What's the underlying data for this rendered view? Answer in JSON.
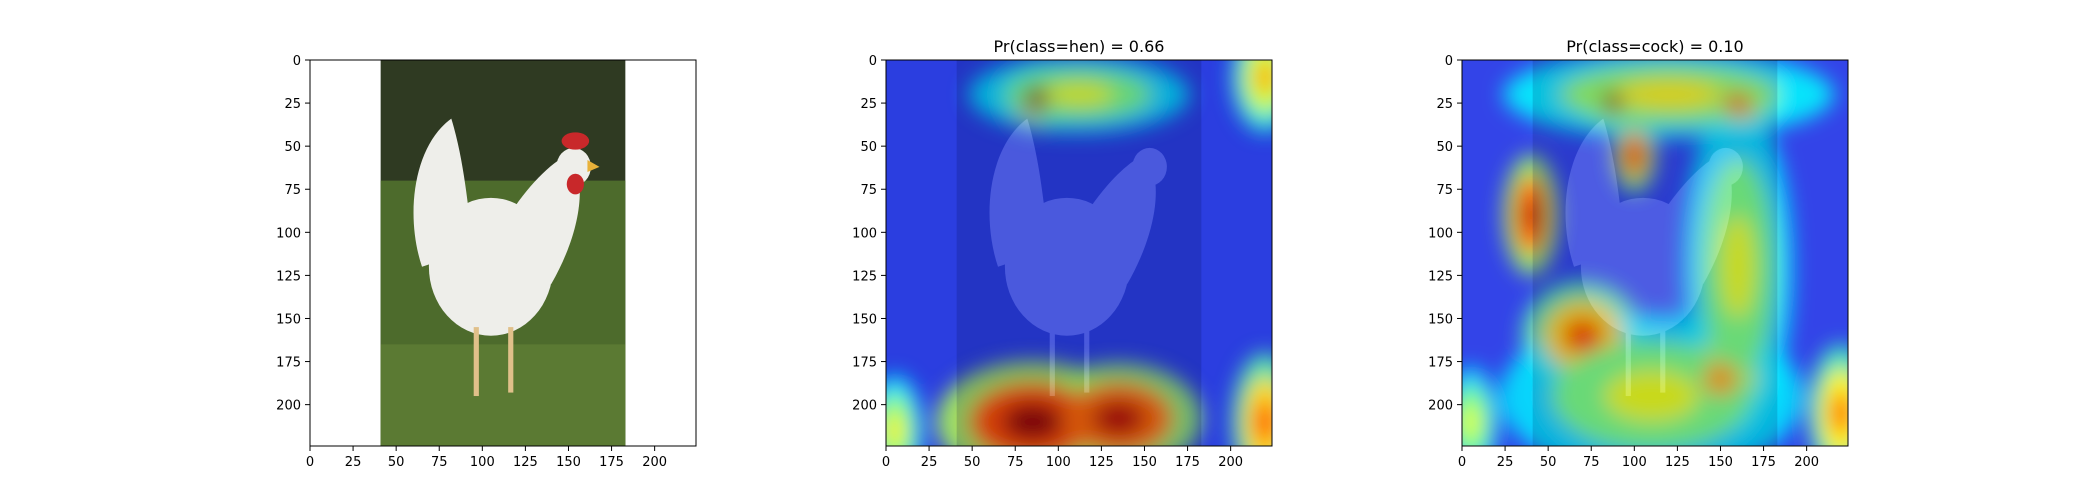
{
  "chart_data": [
    {
      "type": "heatmap",
      "panel": "original",
      "title": "",
      "xlim": [
        0,
        224
      ],
      "ylim": [
        224,
        0
      ],
      "xticks": [
        0,
        25,
        50,
        75,
        100,
        125,
        150,
        175,
        200
      ],
      "yticks": [
        0,
        25,
        50,
        75,
        100,
        125,
        150,
        175,
        200
      ],
      "image_extent_x": [
        41,
        183
      ],
      "image_colors": {
        "background": "#2f3a22",
        "grass": "#4d6b2c",
        "hen": "#eeeeea",
        "comb": "#c8282a",
        "beak": "#e8b13a"
      }
    },
    {
      "type": "heatmap",
      "panel": "hen",
      "title": "Pr(class=hen) =  0.66",
      "xlim": [
        0,
        224
      ],
      "ylim": [
        224,
        0
      ],
      "xticks": [
        0,
        25,
        50,
        75,
        100,
        125,
        150,
        175,
        200
      ],
      "yticks": [
        0,
        25,
        50,
        75,
        100,
        125,
        150,
        175,
        200
      ],
      "hotspots": [
        {
          "x": 85,
          "y": 210,
          "rx": 35,
          "ry": 22,
          "intensity": 1.0
        },
        {
          "x": 135,
          "y": 208,
          "rx": 30,
          "ry": 20,
          "intensity": 0.95
        },
        {
          "x": 88,
          "y": 22,
          "rx": 14,
          "ry": 12,
          "intensity": 1.0
        },
        {
          "x": 112,
          "y": 20,
          "rx": 40,
          "ry": 14,
          "intensity": 0.45
        },
        {
          "x": 220,
          "y": 210,
          "rx": 12,
          "ry": 25,
          "intensity": 0.75
        },
        {
          "x": 5,
          "y": 215,
          "rx": 10,
          "ry": 20,
          "intensity": 0.5
        },
        {
          "x": 220,
          "y": 10,
          "rx": 12,
          "ry": 20,
          "intensity": 0.6
        }
      ]
    },
    {
      "type": "heatmap",
      "panel": "cock",
      "title": "Pr(class=cock) =  0.10",
      "xlim": [
        0,
        224
      ],
      "ylim": [
        224,
        0
      ],
      "xticks": [
        0,
        25,
        50,
        75,
        100,
        125,
        150,
        175,
        200
      ],
      "yticks": [
        0,
        25,
        50,
        75,
        100,
        125,
        150,
        175,
        200
      ],
      "hotspots": [
        {
          "x": 88,
          "y": 24,
          "rx": 12,
          "ry": 11,
          "intensity": 1.0
        },
        {
          "x": 40,
          "y": 90,
          "rx": 10,
          "ry": 22,
          "intensity": 0.95
        },
        {
          "x": 100,
          "y": 55,
          "rx": 8,
          "ry": 14,
          "intensity": 0.85
        },
        {
          "x": 160,
          "y": 25,
          "rx": 15,
          "ry": 10,
          "intensity": 0.8
        },
        {
          "x": 70,
          "y": 160,
          "rx": 22,
          "ry": 20,
          "intensity": 0.75
        },
        {
          "x": 150,
          "y": 185,
          "rx": 20,
          "ry": 20,
          "intensity": 0.6
        },
        {
          "x": 120,
          "y": 20,
          "rx": 60,
          "ry": 16,
          "intensity": 0.5
        },
        {
          "x": 160,
          "y": 120,
          "rx": 20,
          "ry": 60,
          "intensity": 0.45
        },
        {
          "x": 110,
          "y": 195,
          "rx": 55,
          "ry": 30,
          "intensity": 0.45
        },
        {
          "x": 220,
          "y": 205,
          "rx": 12,
          "ry": 25,
          "intensity": 0.7
        },
        {
          "x": 5,
          "y": 210,
          "rx": 10,
          "ry": 20,
          "intensity": 0.45
        }
      ]
    }
  ]
}
